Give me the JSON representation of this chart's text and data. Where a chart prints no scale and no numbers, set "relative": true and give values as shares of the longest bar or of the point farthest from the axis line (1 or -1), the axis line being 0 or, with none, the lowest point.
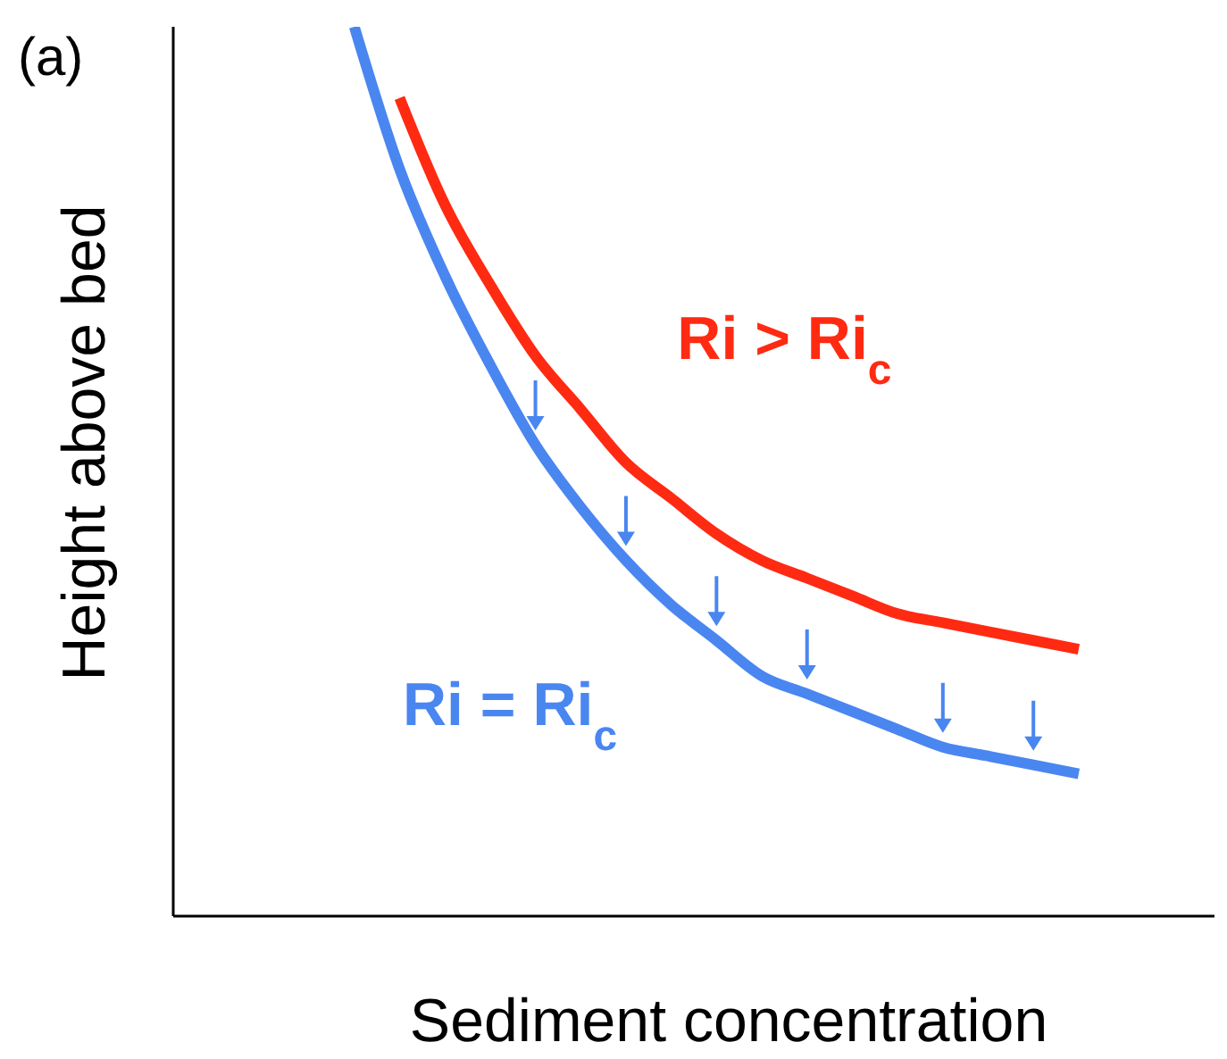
{
  "chart_data": {
    "type": "line",
    "relative": true,
    "xlabel": "Sediment concentration",
    "ylabel": "Height above bed",
    "annotations": [
      "(a)"
    ],
    "categories": [
      null,
      null,
      null,
      null,
      null,
      null,
      null,
      null,
      null,
      null,
      null,
      null,
      null,
      null,
      null,
      null,
      null,
      null,
      null,
      null,
      null,
      null,
      null,
      null
    ],
    "grid": false,
    "marker": "none",
    "line_style": "solid",
    "series": [
      {
        "name": "Ri > Ri$_{c}$",
        "color": "#ff2a12",
        "values": [
          null,
          null,
          null,
          null,
          null,
          0.92,
          0.8,
          0.71,
          0.63,
          0.57,
          0.51,
          0.47,
          0.43,
          0.4,
          0.38,
          0.36,
          0.34,
          0.33,
          0.32,
          0.31,
          0.3,
          null,
          null,
          null
        ]
      },
      {
        "name": "Ri = Ri$_{c}$",
        "color": "#4a86f0",
        "values": [
          null,
          null,
          null,
          null,
          1.0,
          0.84,
          0.72,
          0.62,
          0.53,
          0.46,
          0.4,
          0.35,
          0.31,
          0.27,
          0.25,
          0.23,
          0.21,
          0.19,
          0.18,
          0.17,
          0.16,
          null,
          null,
          null
        ]
      }
    ]
  }
}
